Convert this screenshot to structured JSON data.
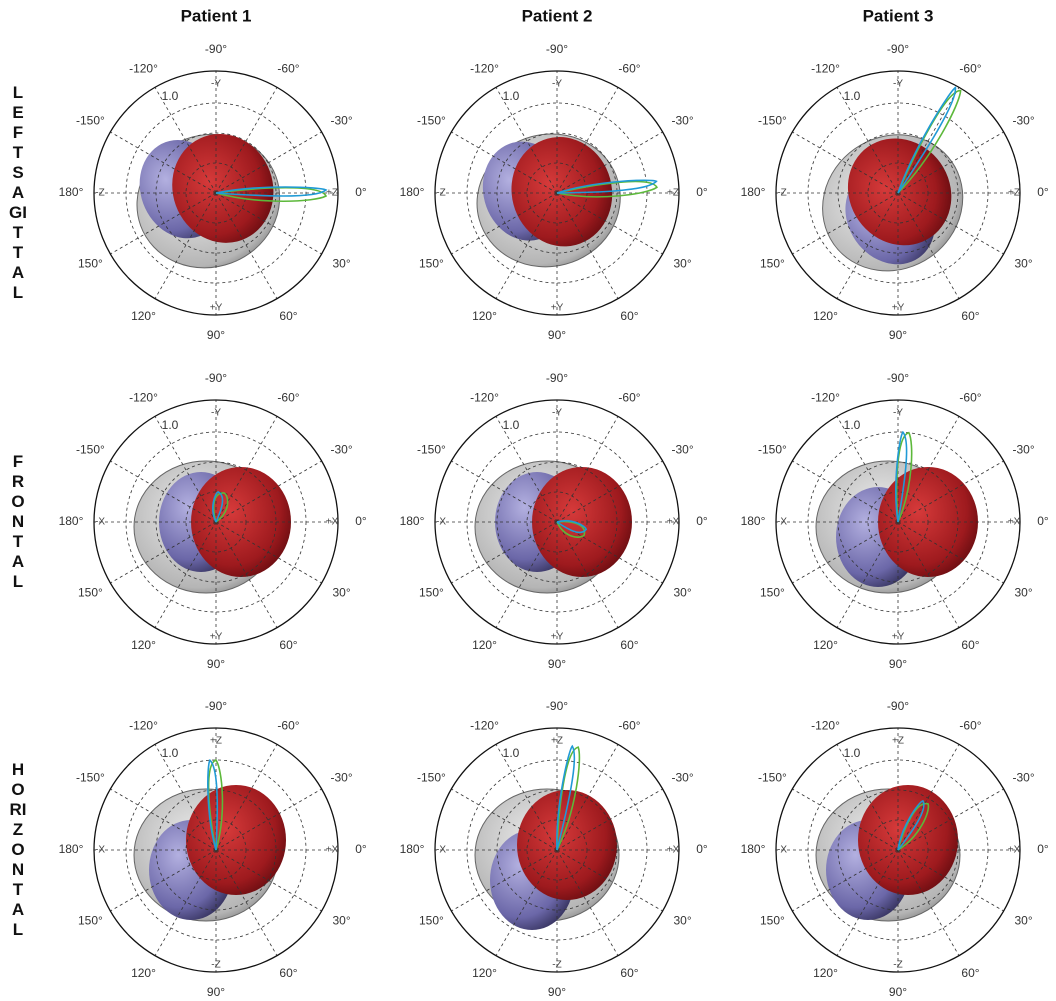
{
  "column_titles": [
    "Patient 1",
    "Patient 2",
    "Patient 3"
  ],
  "rows": [
    {
      "title": "LEFT SAGITTAL",
      "axis_labels": {
        "top": "-Y",
        "bottom": "+Y",
        "left": "-Z",
        "right": "+Z"
      }
    },
    {
      "title": "FRONTAL",
      "axis_labels": {
        "top": "-Y",
        "bottom": "+Y",
        "left": "-X",
        "right": "+X"
      }
    },
    {
      "title": "HORIZONTAL",
      "axis_labels": {
        "top": "+Z",
        "bottom": "-Z",
        "left": "-X",
        "right": "+X"
      }
    }
  ],
  "angle_labels": [
    "0°",
    "30°",
    "60°",
    "90°",
    "120°",
    "150°",
    "180°",
    "-150°",
    "-120°",
    "-90°",
    "-60°",
    "-30°"
  ],
  "radius_label": "1.0"
}
